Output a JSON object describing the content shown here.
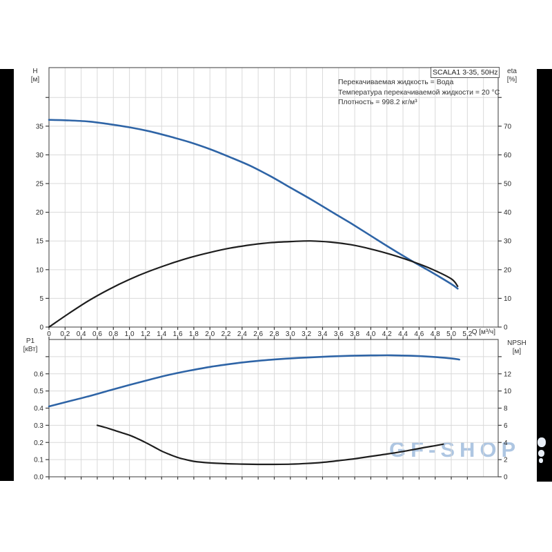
{
  "title_box": {
    "label": "SCALA1 3-35, 50Hz"
  },
  "info": {
    "lines": [
      "Перекачиваемая жидкость = Вода",
      "Температура перекачиваемой жидкости = 20 °C",
      "Плотность = 998.2 кг/м³"
    ]
  },
  "watermark": {
    "text": "GF-SHOP"
  },
  "axes": {
    "h_name": "H",
    "h_unit": "[м]",
    "eta_name": "eta",
    "eta_unit": "[%]",
    "p1_name": "P1",
    "p1_unit": "[кВт]",
    "npsh_name": "NPSH",
    "npsh_unit": "[м]",
    "q_label": "Q [м³/ч]"
  },
  "colors": {
    "curve_blue": "#2e64a6",
    "curve_black": "#1d1d1d",
    "grid": "#d9d9d9",
    "border": "#5a5a5a",
    "tick": "#3a3a3a",
    "watermark": "#aac4e1"
  },
  "chart_data": [
    {
      "type": "line",
      "title": "SCALA1 3-35, 50Hz",
      "x_axis": {
        "label": "Q [м³/ч]",
        "range": [
          0,
          5.583
        ],
        "grid_step": 0.2,
        "show_labels": true,
        "ticks": [
          [
            0,
            "0"
          ],
          [
            0.2,
            "0,2"
          ],
          [
            0.4,
            "0,4"
          ],
          [
            0.6,
            "0,6"
          ],
          [
            0.8,
            "0,8"
          ],
          [
            1.0,
            "1,0"
          ],
          [
            1.2,
            "1,2"
          ],
          [
            1.4,
            "1,4"
          ],
          [
            1.6,
            "1,6"
          ],
          [
            1.8,
            "1,8"
          ],
          [
            2.0,
            "2,0"
          ],
          [
            2.2,
            "2,2"
          ],
          [
            2.4,
            "2,4"
          ],
          [
            2.6,
            "2,6"
          ],
          [
            2.8,
            "2,8"
          ],
          [
            3.0,
            "3,0"
          ],
          [
            3.2,
            "3,2"
          ],
          [
            3.4,
            "3,4"
          ],
          [
            3.6,
            "3,6"
          ],
          [
            3.8,
            "3,8"
          ],
          [
            4.0,
            "4,0"
          ],
          [
            4.2,
            "4,2"
          ],
          [
            4.4,
            "4,4"
          ],
          [
            4.6,
            "4,6"
          ],
          [
            4.8,
            "4,8"
          ],
          [
            5.0,
            "5,0"
          ],
          [
            5.2,
            "5,2"
          ]
        ]
      },
      "y_left": {
        "label": "H [м]",
        "range": [
          0,
          45.2
        ],
        "grid_step": 5,
        "ticks": [
          [
            0,
            "0"
          ],
          [
            5,
            "5"
          ],
          [
            10,
            "10"
          ],
          [
            15,
            "15"
          ],
          [
            20,
            "20"
          ],
          [
            25,
            "25"
          ],
          [
            30,
            "30"
          ],
          [
            35,
            "35"
          ],
          [
            40,
            ""
          ]
        ]
      },
      "y_right": {
        "label": "eta [%]",
        "range": [
          0,
          90.4
        ],
        "ticks": [
          [
            0,
            "0"
          ],
          [
            10,
            "10"
          ],
          [
            20,
            "20"
          ],
          [
            30,
            "30"
          ],
          [
            40,
            "40"
          ],
          [
            50,
            "50"
          ],
          [
            60,
            "60"
          ],
          [
            70,
            "70"
          ],
          [
            80,
            ""
          ]
        ]
      },
      "series": [
        {
          "name": "H(Q) head curve",
          "axis": "left",
          "color": "#2e64a6",
          "width": 2.6,
          "points": [
            [
              0,
              36.1
            ],
            [
              0.25,
              36.0
            ],
            [
              0.5,
              35.8
            ],
            [
              0.75,
              35.35
            ],
            [
              1,
              34.8
            ],
            [
              1.25,
              34.1
            ],
            [
              1.5,
              33.2
            ],
            [
              1.75,
              32.2
            ],
            [
              2,
              31.0
            ],
            [
              2.25,
              29.6
            ],
            [
              2.5,
              28.1
            ],
            [
              2.75,
              26.3
            ],
            [
              3,
              24.3
            ],
            [
              3.25,
              22.3
            ],
            [
              3.5,
              20.2
            ],
            [
              3.75,
              18.1
            ],
            [
              4,
              15.9
            ],
            [
              4.25,
              13.7
            ],
            [
              4.5,
              11.6
            ],
            [
              4.75,
              9.6
            ],
            [
              5,
              7.5
            ],
            [
              5.08,
              6.7
            ]
          ]
        },
        {
          "name": "eta(Q) efficiency curve",
          "axis": "right",
          "color": "#1d1d1d",
          "width": 2.2,
          "points": [
            [
              0,
              0
            ],
            [
              0.25,
              4.8
            ],
            [
              0.5,
              9.3
            ],
            [
              0.75,
              13.2
            ],
            [
              1,
              16.6
            ],
            [
              1.25,
              19.5
            ],
            [
              1.5,
              22.0
            ],
            [
              1.75,
              24.2
            ],
            [
              2,
              26.0
            ],
            [
              2.25,
              27.5
            ],
            [
              2.5,
              28.6
            ],
            [
              2.75,
              29.4
            ],
            [
              3,
              29.8
            ],
            [
              3.25,
              30.0
            ],
            [
              3.5,
              29.6
            ],
            [
              3.75,
              28.7
            ],
            [
              4,
              27.2
            ],
            [
              4.25,
              25.3
            ],
            [
              4.5,
              23.0
            ],
            [
              4.75,
              20.3
            ],
            [
              5,
              16.8
            ],
            [
              5.08,
              14.2
            ]
          ]
        }
      ]
    },
    {
      "type": "line",
      "title": "P1 / NPSH",
      "x_axis": {
        "label": "Q [м³/ч]",
        "range": [
          0,
          5.583
        ],
        "grid_step": 0.2,
        "show_labels": false,
        "ticks": [
          [
            0,
            ""
          ],
          [
            0.2,
            ""
          ],
          [
            0.4,
            ""
          ],
          [
            0.6,
            ""
          ],
          [
            0.8,
            ""
          ],
          [
            1.0,
            ""
          ],
          [
            1.2,
            ""
          ],
          [
            1.4,
            ""
          ],
          [
            1.6,
            ""
          ],
          [
            1.8,
            ""
          ],
          [
            2.0,
            ""
          ],
          [
            2.2,
            ""
          ],
          [
            2.4,
            ""
          ],
          [
            2.6,
            ""
          ],
          [
            2.8,
            ""
          ],
          [
            3.0,
            ""
          ],
          [
            3.2,
            ""
          ],
          [
            3.4,
            ""
          ],
          [
            3.6,
            ""
          ],
          [
            3.8,
            ""
          ],
          [
            4.0,
            ""
          ],
          [
            4.2,
            ""
          ],
          [
            4.4,
            ""
          ],
          [
            4.6,
            ""
          ],
          [
            4.8,
            ""
          ],
          [
            5.0,
            ""
          ],
          [
            5.2,
            ""
          ]
        ]
      },
      "y_left": {
        "label": "P1 [кВт]",
        "range": [
          0,
          0.8
        ],
        "grid_step": 0.1,
        "ticks": [
          [
            0,
            "0.0"
          ],
          [
            0.1,
            "0.1"
          ],
          [
            0.2,
            "0.2"
          ],
          [
            0.3,
            "0.3"
          ],
          [
            0.4,
            "0.4"
          ],
          [
            0.5,
            "0.5"
          ],
          [
            0.6,
            "0.6"
          ],
          [
            0.7,
            ""
          ]
        ]
      },
      "y_right": {
        "label": "NPSH [м]",
        "range": [
          0,
          16
        ],
        "ticks": [
          [
            0,
            "0"
          ],
          [
            2,
            "2"
          ],
          [
            4,
            "4"
          ],
          [
            6,
            "6"
          ],
          [
            8,
            "8"
          ],
          [
            10,
            "10"
          ],
          [
            12,
            "12"
          ],
          [
            14,
            ""
          ]
        ]
      },
      "series": [
        {
          "name": "P1(Q) power curve",
          "axis": "left",
          "color": "#2e64a6",
          "width": 2.6,
          "points": [
            [
              0,
              0.41
            ],
            [
              0.25,
              0.44
            ],
            [
              0.5,
              0.47
            ],
            [
              0.75,
              0.503
            ],
            [
              1,
              0.535
            ],
            [
              1.25,
              0.566
            ],
            [
              1.5,
              0.595
            ],
            [
              1.75,
              0.619
            ],
            [
              2,
              0.64
            ],
            [
              2.25,
              0.657
            ],
            [
              2.5,
              0.671
            ],
            [
              2.75,
              0.682
            ],
            [
              3,
              0.69
            ],
            [
              3.25,
              0.696
            ],
            [
              3.5,
              0.701
            ],
            [
              3.75,
              0.705
            ],
            [
              4,
              0.707
            ],
            [
              4.25,
              0.708
            ],
            [
              4.5,
              0.705
            ],
            [
              4.75,
              0.699
            ],
            [
              5,
              0.69
            ],
            [
              5.1,
              0.683
            ]
          ]
        },
        {
          "name": "NPSH(Q) curve",
          "axis": "right",
          "color": "#1d1d1d",
          "width": 2.2,
          "points": [
            [
              0.6,
              6.0
            ],
            [
              0.7,
              5.75
            ],
            [
              0.8,
              5.45
            ],
            [
              0.9,
              5.15
            ],
            [
              1,
              4.85
            ],
            [
              1.1,
              4.45
            ],
            [
              1.2,
              4.0
            ],
            [
              1.3,
              3.5
            ],
            [
              1.4,
              3.0
            ],
            [
              1.5,
              2.6
            ],
            [
              1.6,
              2.25
            ],
            [
              1.7,
              2.0
            ],
            [
              1.8,
              1.8
            ],
            [
              2,
              1.62
            ],
            [
              2.2,
              1.53
            ],
            [
              2.4,
              1.48
            ],
            [
              2.6,
              1.45
            ],
            [
              2.8,
              1.45
            ],
            [
              3,
              1.47
            ],
            [
              3.2,
              1.55
            ],
            [
              3.4,
              1.68
            ],
            [
              3.6,
              1.88
            ],
            [
              3.8,
              2.1
            ],
            [
              4,
              2.38
            ],
            [
              4.2,
              2.65
            ],
            [
              4.4,
              2.95
            ],
            [
              4.6,
              3.3
            ],
            [
              4.8,
              3.63
            ],
            [
              4.9,
              3.8
            ]
          ]
        }
      ]
    }
  ]
}
